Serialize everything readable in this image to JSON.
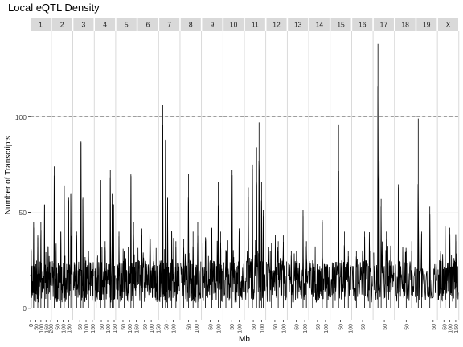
{
  "chart_data": {
    "type": "line",
    "title": "Local eQTL Density",
    "xlabel": "Mb",
    "ylabel": "Number of Transcripts",
    "ylim": [
      -6,
      145
    ],
    "yticks": [
      0,
      50,
      100
    ],
    "threshold": 100,
    "threshold_style": "dashed",
    "panels": [
      {
        "chr": "1",
        "length": 195,
        "xticks": [
          0,
          50,
          100,
          150,
          200
        ],
        "peaks": [
          [
            6,
            30
          ],
          [
            30,
            42
          ],
          [
            70,
            38
          ],
          [
            100,
            45
          ],
          [
            135,
            54
          ],
          [
            170,
            32
          ]
        ]
      },
      {
        "chr": "2",
        "length": 182,
        "xticks": [
          50,
          100,
          150
        ],
        "peaks": [
          [
            20,
            74
          ],
          [
            80,
            40
          ],
          [
            110,
            64
          ],
          [
            150,
            58
          ],
          [
            170,
            60
          ]
        ]
      },
      {
        "chr": "3",
        "length": 160,
        "xticks": [
          50,
          100,
          150
        ],
        "peaks": [
          [
            25,
            40
          ],
          [
            60,
            87
          ],
          [
            75,
            58
          ],
          [
            120,
            30
          ]
        ]
      },
      {
        "chr": "4",
        "length": 157,
        "xticks": [
          50,
          100,
          150
        ],
        "peaks": [
          [
            10,
            30
          ],
          [
            45,
            67
          ],
          [
            80,
            35
          ],
          [
            120,
            72
          ],
          [
            135,
            60
          ],
          [
            145,
            54
          ]
        ]
      },
      {
        "chr": "5",
        "length": 152,
        "xticks": [
          50,
          100,
          150
        ],
        "peaks": [
          [
            20,
            40
          ],
          [
            60,
            30
          ],
          [
            110,
            69
          ],
          [
            130,
            45
          ]
        ]
      },
      {
        "chr": "6",
        "length": 150,
        "xticks": [
          50,
          100,
          150
        ],
        "peaks": [
          [
            30,
            38
          ],
          [
            90,
            40
          ],
          [
            120,
            32
          ]
        ]
      },
      {
        "chr": "7",
        "length": 145,
        "xticks": [
          50,
          100
        ],
        "peaks": [
          [
            25,
            106
          ],
          [
            45,
            88
          ],
          [
            60,
            58
          ],
          [
            90,
            40
          ],
          [
            120,
            35
          ]
        ]
      },
      {
        "chr": "8",
        "length": 130,
        "xticks": [
          50,
          100
        ],
        "peaks": [
          [
            20,
            36
          ],
          [
            50,
            70
          ],
          [
            80,
            40
          ],
          [
            110,
            45
          ]
        ]
      },
      {
        "chr": "9",
        "length": 125,
        "xticks": [
          50,
          100
        ],
        "peaks": [
          [
            20,
            35
          ],
          [
            60,
            42
          ],
          [
            100,
            66
          ],
          [
            115,
            40
          ]
        ]
      },
      {
        "chr": "10",
        "length": 130,
        "xticks": [
          50,
          100
        ],
        "peaks": [
          [
            15,
            30
          ],
          [
            55,
            72
          ],
          [
            100,
            40
          ]
        ]
      },
      {
        "chr": "11",
        "length": 122,
        "xticks": [
          50,
          100
        ],
        "peaks": [
          [
            20,
            63
          ],
          [
            45,
            75
          ],
          [
            70,
            84
          ],
          [
            85,
            97
          ],
          [
            100,
            66
          ],
          [
            110,
            48
          ]
        ]
      },
      {
        "chr": "12",
        "length": 120,
        "xticks": [
          50,
          100
        ],
        "peaks": [
          [
            30,
            30
          ],
          [
            70,
            35
          ],
          [
            100,
            38
          ]
        ]
      },
      {
        "chr": "13",
        "length": 120,
        "xticks": [
          50,
          100
        ],
        "peaks": [
          [
            20,
            30
          ],
          [
            90,
            48
          ],
          [
            110,
            35
          ]
        ]
      },
      {
        "chr": "14",
        "length": 125,
        "xticks": [
          50,
          100
        ],
        "peaks": [
          [
            20,
            25
          ],
          [
            80,
            45
          ],
          [
            110,
            20
          ]
        ]
      },
      {
        "chr": "15",
        "length": 104,
        "xticks": [
          50,
          100
        ],
        "peaks": [
          [
            10,
            20
          ],
          [
            40,
            96
          ],
          [
            70,
            40
          ],
          [
            90,
            30
          ]
        ]
      },
      {
        "chr": "16",
        "length": 98,
        "xticks": [
          50
        ],
        "peaks": [
          [
            20,
            30
          ],
          [
            60,
            40
          ],
          [
            85,
            30
          ]
        ]
      },
      {
        "chr": "17",
        "length": 95,
        "xticks": [
          50
        ],
        "peaks": [
          [
            20,
            138
          ],
          [
            25,
            100
          ],
          [
            35,
            57
          ],
          [
            60,
            40
          ],
          [
            80,
            30
          ]
        ]
      },
      {
        "chr": "18",
        "length": 91,
        "xticks": [
          50
        ],
        "peaks": [
          [
            15,
            63
          ],
          [
            50,
            30
          ],
          [
            75,
            35
          ]
        ]
      },
      {
        "chr": "19",
        "length": 61,
        "xticks": [
          50
        ],
        "peaks": [
          [
            5,
            99
          ],
          [
            15,
            40
          ],
          [
            40,
            53
          ]
        ]
      },
      {
        "chr": "X",
        "length": 171,
        "xticks": [
          50,
          100,
          150
        ],
        "peaks": [
          [
            20,
            30
          ],
          [
            60,
            43
          ],
          [
            100,
            42
          ],
          [
            150,
            35
          ]
        ]
      }
    ]
  }
}
